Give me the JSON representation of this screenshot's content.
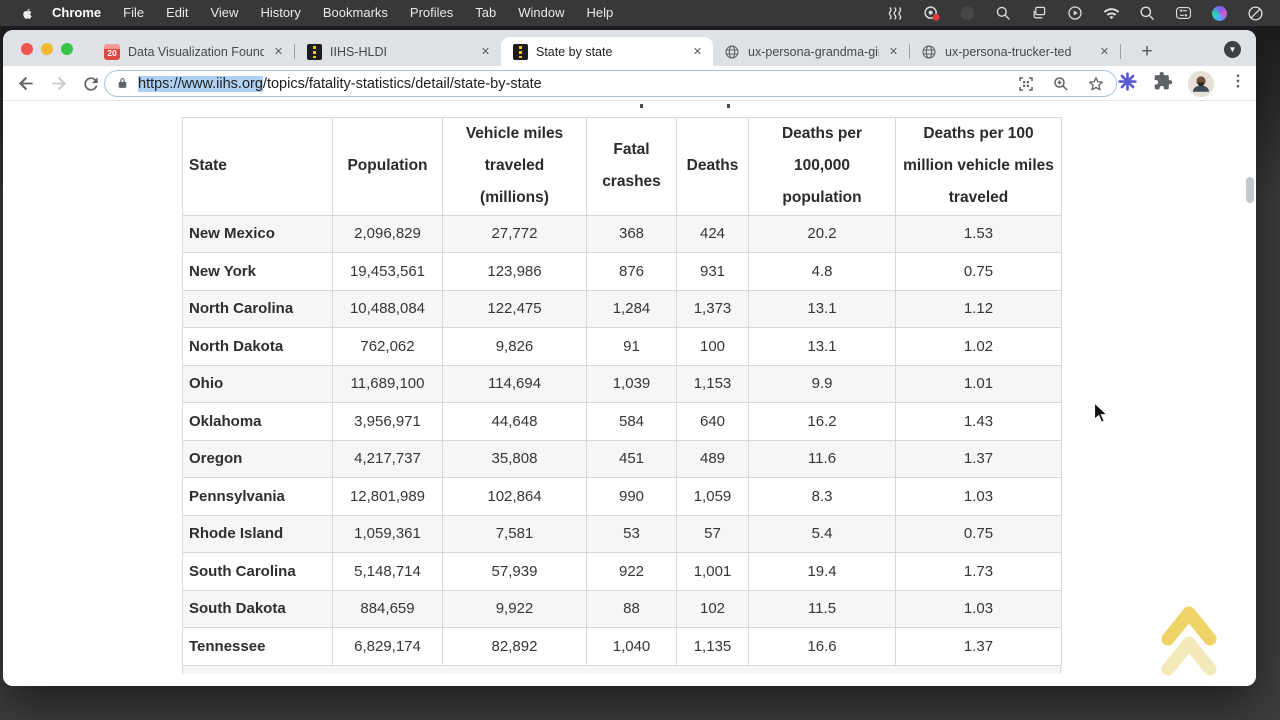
{
  "menubar": {
    "apple_icon": "apple-logo-icon",
    "items": [
      "Chrome",
      "File",
      "Edit",
      "View",
      "History",
      "Bookmarks",
      "Profiles",
      "Tab",
      "Window",
      "Help"
    ],
    "status_icons": [
      "waves-icon",
      "screen-record-icon",
      "dimmed-circle-icon",
      "magnifier-icon",
      "windows-stack-icon",
      "play-circle-icon",
      "wifi-icon",
      "spotlight-search-icon",
      "control-center-icon",
      "color-swirl-icon",
      "do-not-disturb-icon"
    ]
  },
  "browser": {
    "window_controls": [
      "close",
      "minimize",
      "zoom"
    ],
    "tabs": [
      {
        "title": "Data Visualization Founda",
        "favicon": "calendar-20",
        "active": false
      },
      {
        "title": "IIHS-HLDI",
        "favicon": "iihs-road",
        "active": false
      },
      {
        "title": "State by state",
        "favicon": "iihs-road",
        "active": true
      },
      {
        "title": "ux-persona-grandma-gin",
        "favicon": "globe",
        "active": false
      },
      {
        "title": "ux-persona-trucker-ted",
        "favicon": "globe",
        "active": false
      }
    ],
    "close_symbol": "✕",
    "new_tab_label": "+",
    "tab_search_symbol": "▼",
    "nav_icons": [
      "back-icon",
      "forward-icon",
      "reload-icon"
    ],
    "url": {
      "selected": "https://www.iihs.org",
      "path": "/topics/fatality-statistics/detail/state-by-state"
    },
    "omnibox_icons": [
      "lock-icon",
      "frame-capture-icon",
      "zoom-in-icon",
      "bookmark-star-icon"
    ],
    "toolbar_icons": [
      "extension-asterisk-icon",
      "extensions-puzzle-icon",
      "profile-avatar",
      "menu-kebab-icon"
    ]
  },
  "page": {
    "table": {
      "headers": [
        "State",
        "Population",
        "Vehicle miles traveled (millions)",
        "Fatal crashes",
        "Deaths",
        "Deaths per 100,000 population",
        "Deaths per 100 million vehicle miles traveled"
      ],
      "rows": [
        [
          "New Mexico",
          "2,096,829",
          "27,772",
          "368",
          "424",
          "20.2",
          "1.53"
        ],
        [
          "New York",
          "19,453,561",
          "123,986",
          "876",
          "931",
          "4.8",
          "0.75"
        ],
        [
          "North Carolina",
          "10,488,084",
          "122,475",
          "1,284",
          "1,373",
          "13.1",
          "1.12"
        ],
        [
          "North Dakota",
          "762,062",
          "9,826",
          "91",
          "100",
          "13.1",
          "1.02"
        ],
        [
          "Ohio",
          "11,689,100",
          "114,694",
          "1,039",
          "1,153",
          "9.9",
          "1.01"
        ],
        [
          "Oklahoma",
          "3,956,971",
          "44,648",
          "584",
          "640",
          "16.2",
          "1.43"
        ],
        [
          "Oregon",
          "4,217,737",
          "35,808",
          "451",
          "489",
          "11.6",
          "1.37"
        ],
        [
          "Pennsylvania",
          "12,801,989",
          "102,864",
          "990",
          "1,059",
          "8.3",
          "1.03"
        ],
        [
          "Rhode Island",
          "1,059,361",
          "7,581",
          "53",
          "57",
          "5.4",
          "0.75"
        ],
        [
          "South Carolina",
          "5,148,714",
          "57,939",
          "922",
          "1,001",
          "19.4",
          "1.73"
        ],
        [
          "South Dakota",
          "884,659",
          "9,922",
          "88",
          "102",
          "11.5",
          "1.03"
        ],
        [
          "Tennessee",
          "6,829,174",
          "82,892",
          "1,040",
          "1,135",
          "16.6",
          "1.37"
        ]
      ]
    },
    "back_to_top_icon": "chevron-up-double-icon",
    "accent_colors": {
      "chevron_gold": "#eccf55",
      "row_stripe": "#f6f6f7",
      "selection_blue": "#aed1f2"
    }
  }
}
